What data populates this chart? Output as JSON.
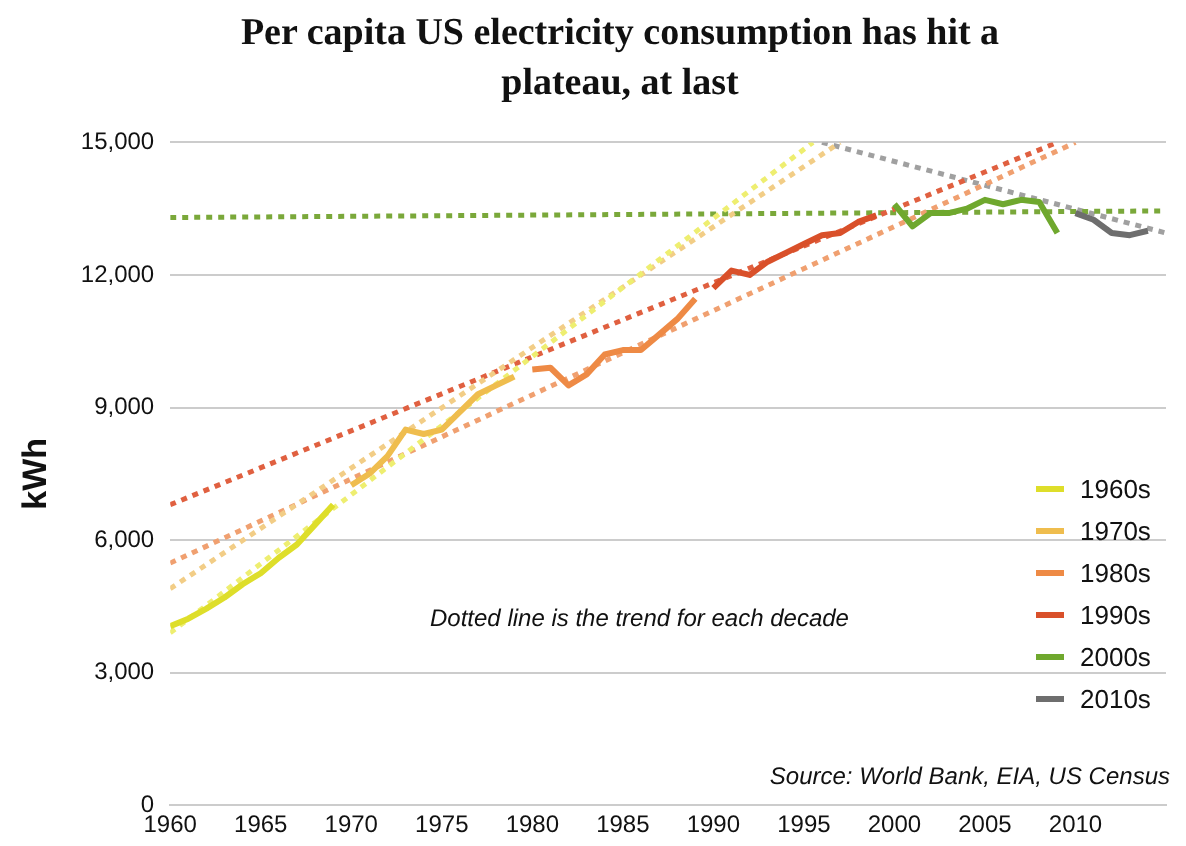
{
  "chart_data": {
    "type": "line",
    "title": "Per capita US electricity consumption has hit a plateau, at last",
    "ylabel": "kWh",
    "xlim": [
      1960,
      2015
    ],
    "xticks": [
      1960,
      1965,
      1970,
      1975,
      1980,
      1985,
      1990,
      1995,
      2000,
      2005,
      2010
    ],
    "ylim": [
      0,
      15000
    ],
    "yticks": [
      {
        "value": 0,
        "label": "0"
      },
      {
        "value": 3000,
        "label": "3,000"
      },
      {
        "value": 6000,
        "label": "6,000"
      },
      {
        "value": 9000,
        "label": "9,000"
      },
      {
        "value": 12000,
        "label": "12,000"
      },
      {
        "value": 15000,
        "label": "15,000"
      }
    ],
    "grid": "y",
    "legend": "bottom right",
    "marker": "none",
    "annotations": [
      "Dotted line is the trend for each decade",
      "Source: World Bank, EIA, US Census"
    ],
    "series": [
      {
        "name": "1960s",
        "color": "#dede2a",
        "x": [
          1960,
          1961,
          1962,
          1963,
          1964,
          1965,
          1966,
          1967,
          1968,
          1969
        ],
        "values": [
          4050,
          4220,
          4450,
          4700,
          5000,
          5250,
          5600,
          5900,
          6350,
          6800
        ]
      },
      {
        "name": "1970s",
        "color": "#efbd4e",
        "x": [
          1970,
          1971,
          1972,
          1973,
          1974,
          1975,
          1976,
          1977,
          1978,
          1979
        ],
        "values": [
          7240,
          7500,
          7900,
          8500,
          8400,
          8500,
          8900,
          9300,
          9500,
          9700
        ]
      },
      {
        "name": "1980s",
        "color": "#ee8a45",
        "x": [
          1980,
          1981,
          1982,
          1983,
          1984,
          1985,
          1986,
          1987,
          1988,
          1989
        ],
        "values": [
          9860,
          9900,
          9500,
          9750,
          10200,
          10300,
          10300,
          10650,
          11000,
          11460
        ]
      },
      {
        "name": "1990s",
        "color": "#d9502a",
        "x": [
          1990,
          1991,
          1992,
          1993,
          1994,
          1995,
          1996,
          1997,
          1998,
          1999
        ],
        "values": [
          11700,
          12100,
          12000,
          12300,
          12500,
          12700,
          12900,
          12950,
          13200,
          13350
        ]
      },
      {
        "name": "2000s",
        "color": "#6fa82e",
        "x": [
          2000,
          2001,
          2002,
          2003,
          2004,
          2005,
          2006,
          2007,
          2008,
          2009
        ],
        "values": [
          13600,
          13100,
          13400,
          13400,
          13500,
          13700,
          13600,
          13700,
          13650,
          12950
        ]
      },
      {
        "name": "2010s",
        "color": "#6e6e6e",
        "x": [
          2010,
          2011,
          2012,
          2013,
          2014
        ],
        "values": [
          13400,
          13250,
          12950,
          12900,
          13000
        ]
      },
      {
        "color": "#eeee70",
        "line_style": "dotted",
        "x": [
          1960,
          1995.5
        ],
        "values": [
          3900,
          15000
        ]
      },
      {
        "color": "#f2cd86",
        "line_style": "dotted",
        "x": [
          1960,
          1997
        ],
        "values": [
          4900,
          15000
        ]
      },
      {
        "color": "#f0a070",
        "line_style": "dotted",
        "x": [
          1960,
          2010
        ],
        "values": [
          5480,
          15000
        ]
      },
      {
        "color": "#e06040",
        "line_style": "dotted",
        "x": [
          1960,
          2009
        ],
        "values": [
          6800,
          15000
        ]
      },
      {
        "color": "#7aa83a",
        "line_style": "dotted",
        "x": [
          1960,
          2015
        ],
        "values": [
          13300,
          13450
        ]
      },
      {
        "color": "#a0a0a0",
        "line_style": "dotted",
        "x": [
          1996,
          2015
        ],
        "values": [
          15000,
          12950
        ]
      }
    ]
  }
}
